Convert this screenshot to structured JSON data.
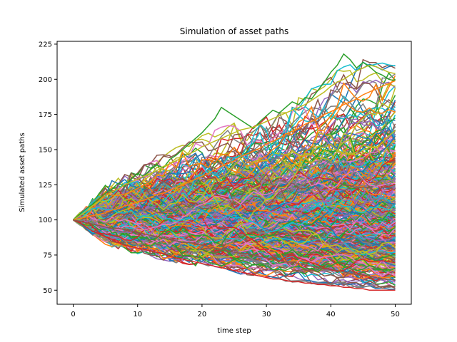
{
  "chart_data": {
    "type": "line",
    "title": "Simulation of asset paths",
    "xlabel": "time step",
    "ylabel": "Simulated asset paths",
    "xlim": [
      -2.5,
      52.5
    ],
    "ylim": [
      40,
      227
    ],
    "xticks": [
      0,
      10,
      20,
      30,
      40,
      50
    ],
    "yticks": [
      50,
      75,
      100,
      125,
      150,
      175,
      200,
      225
    ],
    "grid": false,
    "legend": "none",
    "start_value": 100,
    "num_steps": 50,
    "num_paths": 500,
    "envelope": {
      "x": [
        0,
        5,
        10,
        15,
        20,
        25,
        30,
        35,
        40,
        45,
        50
      ],
      "upper": [
        100,
        125,
        140,
        150,
        160,
        170,
        178,
        190,
        205,
        215,
        210
      ],
      "lower": [
        100,
        82,
        75,
        70,
        66,
        62,
        58,
        55,
        53,
        51,
        50
      ]
    },
    "highlight_series": [
      {
        "name": "",
        "color": "#2ca02c",
        "values": [
          100,
          104,
          108,
          111,
          115,
          119,
          122,
          126,
          124,
          129,
          133,
          131,
          136,
          139,
          137,
          143,
          146,
          150,
          154,
          158,
          162,
          167,
          172,
          180,
          177,
          174,
          171,
          168,
          165,
          170,
          174,
          178,
          176,
          180,
          184,
          182,
          187,
          186,
          192,
          198,
          205,
          210,
          218,
          214,
          208,
          212,
          209,
          205,
          203,
          200,
          199
        ]
      },
      {
        "name": "",
        "color": "#d62728",
        "values": [
          100,
          98,
          95,
          92,
          90,
          88,
          86,
          84,
          82,
          81,
          80,
          79,
          78,
          77,
          76,
          74,
          73,
          72,
          71,
          70,
          69,
          68,
          67,
          66,
          65,
          64,
          63,
          62,
          61,
          60,
          59,
          58,
          58,
          57,
          56,
          56,
          55,
          55,
          54,
          54,
          53,
          53,
          52,
          52,
          51,
          51,
          50,
          50,
          50,
          50,
          50
        ]
      },
      {
        "name": "",
        "color": "#bcbd22",
        "values": [
          100,
          103,
          106,
          110,
          113,
          117,
          120,
          122,
          125,
          127,
          129,
          131,
          133,
          135,
          138,
          140,
          142,
          145,
          147,
          149,
          152,
          154,
          156,
          158,
          160,
          162,
          164,
          165,
          166,
          168,
          170,
          172,
          174,
          176,
          178,
          180,
          182,
          185,
          188,
          191,
          195,
          198,
          200,
          203,
          206,
          208,
          210,
          209,
          207,
          205,
          204
        ]
      },
      {
        "name": "",
        "color": "#ff7f0e",
        "values": [
          100,
          101,
          102,
          103,
          104,
          105,
          107,
          108,
          110,
          111,
          113,
          114,
          116,
          118,
          119,
          121,
          123,
          125,
          127,
          129,
          131,
          133,
          136,
          138,
          140,
          142,
          145,
          147,
          149,
          151,
          154,
          156,
          158,
          161,
          163,
          165,
          168,
          170,
          172,
          175,
          177,
          179,
          182,
          184,
          186,
          189,
          191,
          193,
          195,
          197,
          199
        ]
      },
      {
        "name": "",
        "color": "#8c564b",
        "values": [
          100,
          99,
          98,
          97,
          96,
          95,
          94,
          94,
          93,
          92,
          91,
          90,
          89,
          88,
          87,
          86,
          85,
          84,
          84,
          83,
          82,
          81,
          80,
          79,
          78,
          77,
          76,
          76,
          75,
          74,
          73,
          72,
          71,
          70,
          70,
          69,
          68,
          67,
          66,
          65,
          65,
          64,
          63,
          62,
          61,
          61,
          60,
          59,
          58,
          58,
          57
        ]
      }
    ]
  },
  "palette": [
    "#1f77b4",
    "#ff7f0e",
    "#2ca02c",
    "#d62728",
    "#9467bd",
    "#8c564b",
    "#e377c2",
    "#7f7f7f",
    "#bcbd22",
    "#17becf"
  ],
  "title": "Simulation of asset paths",
  "xlabel": "time step",
  "ylabel": "Simulated asset paths"
}
